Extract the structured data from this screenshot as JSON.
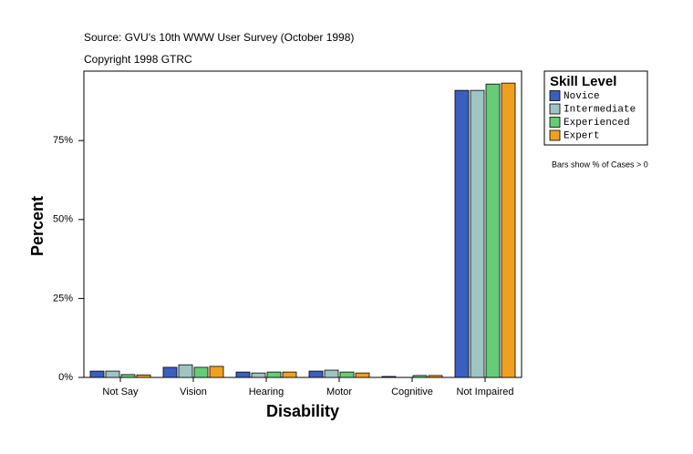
{
  "chart_data": {
    "type": "bar",
    "title": "Source: GVU's 10th WWW User Survey (October 1998)",
    "subtitle": "Copyright 1998 GTRC",
    "x_label": "Disability",
    "y_label": "Percent",
    "note": "Bars show % of Cases > 0",
    "legend_title": "Skill Level",
    "categories": [
      "Not Say",
      "Vision",
      "Hearing",
      "Motor",
      "Cognitive",
      "Not Impaired"
    ],
    "series": [
      {
        "name": "Novice",
        "color": "#3a5fbf",
        "values": [
          2.0,
          3.2,
          1.7,
          2.0,
          0.3,
          90.9
        ]
      },
      {
        "name": "Intermediate",
        "color": "#9fc4c4",
        "values": [
          2.0,
          4.0,
          1.4,
          2.3,
          0,
          90.9
        ]
      },
      {
        "name": "Experienced",
        "color": "#66cc77",
        "values": [
          0.9,
          3.2,
          1.7,
          1.7,
          0.6,
          92.9
        ]
      },
      {
        "name": "Expert",
        "color": "#f0a020",
        "values": [
          0.8,
          3.5,
          1.7,
          1.4,
          0.6,
          93.2
        ]
      }
    ],
    "ylim": [
      0,
      97
    ],
    "yticks": [
      {
        "value": 0,
        "label": "0%"
      },
      {
        "value": 25,
        "label": "25%"
      },
      {
        "value": 50,
        "label": "50%"
      },
      {
        "value": 75,
        "label": "75%"
      }
    ],
    "legend_position": "right"
  }
}
